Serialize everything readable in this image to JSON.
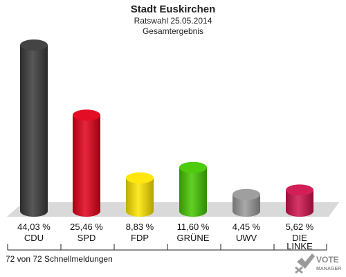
{
  "header": {
    "title": "Stadt Euskirchen",
    "subtitle": "Ratswahl 25.05.2014",
    "subtitle2": "Gesamtergebnis"
  },
  "footer": {
    "text": "72 von 72 Schnellmeldungen"
  },
  "logo": {
    "line1": "VOTE",
    "line2": "MANAGER",
    "icon": "vote-checkmark-icon"
  },
  "chart_data": {
    "type": "bar",
    "title": "Stadt Euskirchen",
    "subtitle": "Ratswahl 25.05.2014 Gesamtergebnis",
    "categories": [
      "CDU",
      "SPD",
      "FDP",
      "GRÜNE",
      "UWV",
      "DIE LINKE"
    ],
    "values": [
      44.03,
      25.46,
      8.83,
      11.6,
      4.45,
      5.62
    ],
    "value_labels": [
      "44,03 %",
      "25,46 %",
      "8,83 %",
      "11,60 %",
      "4,45 %",
      "5,62 %"
    ],
    "colors": [
      "#3a3a3a",
      "#e2001a",
      "#ffe600",
      "#46c800",
      "#9a9a9a",
      "#d0134e"
    ],
    "ylim": [
      0,
      44.03
    ],
    "grid": false,
    "legend": "none",
    "xlabel": "",
    "ylabel": ""
  }
}
